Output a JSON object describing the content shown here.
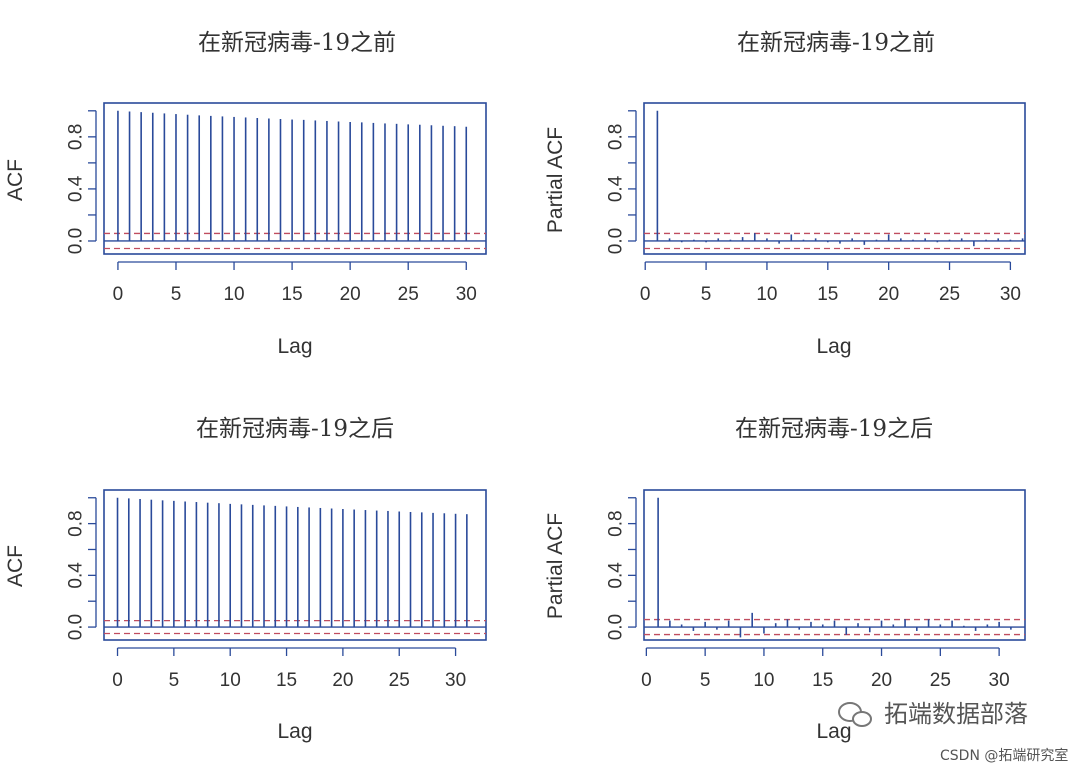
{
  "colors": {
    "frame": "#2a4a9a",
    "bar": "#2a4a9a",
    "ci": "#c04d5f",
    "text": "#333333"
  },
  "charts": {
    "acf_before": {
      "type": "bar",
      "title": "在新冠病毒-19之前",
      "xlabel": "Lag",
      "ylabel": "ACF",
      "xlim": [
        -1.2,
        31.7
      ],
      "ylim": [
        -0.1,
        1.06
      ],
      "xticks": [
        0,
        5,
        10,
        15,
        20,
        25,
        30
      ],
      "yticks": [
        0.0,
        0.4,
        0.8
      ],
      "yticks_minor": [
        0.2,
        0.6,
        1.0
      ],
      "ci": 0.058,
      "x": [
        0,
        1,
        2,
        3,
        4,
        5,
        6,
        7,
        8,
        9,
        10,
        11,
        12,
        13,
        14,
        15,
        16,
        17,
        18,
        19,
        20,
        21,
        22,
        23,
        24,
        25,
        26,
        27,
        28,
        29,
        30
      ],
      "values": [
        1.0,
        0.995,
        0.99,
        0.985,
        0.98,
        0.975,
        0.97,
        0.965,
        0.961,
        0.957,
        0.953,
        0.949,
        0.945,
        0.941,
        0.937,
        0.933,
        0.93,
        0.926,
        0.922,
        0.918,
        0.914,
        0.911,
        0.907,
        0.903,
        0.9,
        0.896,
        0.893,
        0.889,
        0.885,
        0.882,
        0.878
      ]
    },
    "pacf_before": {
      "type": "bar",
      "title": "在新冠病毒-19之前",
      "xlabel": "Lag",
      "ylabel": "Partial ACF",
      "xlim": [
        -0.1,
        31.2
      ],
      "ylim": [
        -0.1,
        1.06
      ],
      "xticks": [
        0,
        5,
        10,
        15,
        20,
        25,
        30
      ],
      "yticks": [
        0.0,
        0.4,
        0.8
      ],
      "yticks_minor": [
        0.2,
        0.6,
        1.0
      ],
      "ci": 0.058,
      "x": [
        1,
        2,
        3,
        4,
        5,
        6,
        7,
        8,
        9,
        10,
        11,
        12,
        13,
        14,
        15,
        16,
        17,
        18,
        19,
        20,
        21,
        22,
        23,
        24,
        25,
        26,
        27,
        28,
        29,
        30,
        31
      ],
      "values": [
        1.0,
        0.02,
        -0.01,
        0.01,
        -0.01,
        0.02,
        0.01,
        0.03,
        0.06,
        0.02,
        -0.02,
        0.05,
        0.01,
        0.02,
        -0.01,
        -0.02,
        0.02,
        -0.03,
        0.01,
        0.05,
        0.02,
        0.01,
        0.02,
        -0.01,
        0.01,
        0.02,
        -0.04,
        0.01,
        0.02,
        0.01,
        0.02
      ]
    },
    "acf_after": {
      "type": "bar",
      "title": "在新冠病毒-19之后",
      "xlabel": "Lag",
      "ylabel": "ACF",
      "xlim": [
        -1.2,
        32.7
      ],
      "ylim": [
        -0.1,
        1.06
      ],
      "xticks": [
        0,
        5,
        10,
        15,
        20,
        25,
        30
      ],
      "yticks": [
        0.0,
        0.4,
        0.8
      ],
      "yticks_minor": [
        0.2,
        0.6,
        1.0
      ],
      "ci": 0.05,
      "x": [
        0,
        1,
        2,
        3,
        4,
        5,
        6,
        7,
        8,
        9,
        10,
        11,
        12,
        13,
        14,
        15,
        16,
        17,
        18,
        19,
        20,
        21,
        22,
        23,
        24,
        25,
        26,
        27,
        28,
        29,
        30,
        31
      ],
      "values": [
        1.0,
        0.995,
        0.99,
        0.985,
        0.98,
        0.976,
        0.971,
        0.967,
        0.962,
        0.958,
        0.953,
        0.949,
        0.945,
        0.941,
        0.937,
        0.933,
        0.929,
        0.925,
        0.921,
        0.917,
        0.913,
        0.909,
        0.905,
        0.901,
        0.898,
        0.894,
        0.89,
        0.887,
        0.883,
        0.88,
        0.876,
        0.873
      ]
    },
    "pacf_after": {
      "type": "bar",
      "title": "在新冠病毒-19之后",
      "xlabel": "Lag",
      "ylabel": "Partial ACF",
      "xlim": [
        -0.2,
        32.2
      ],
      "ylim": [
        -0.1,
        1.06
      ],
      "xticks": [
        0,
        5,
        10,
        15,
        20,
        25,
        30
      ],
      "yticks": [
        0.0,
        0.4,
        0.8
      ],
      "yticks_minor": [
        0.2,
        0.6,
        1.0
      ],
      "ci": 0.058,
      "x": [
        1,
        2,
        3,
        4,
        5,
        6,
        7,
        8,
        9,
        10,
        11,
        12,
        13,
        14,
        15,
        16,
        17,
        18,
        19,
        20,
        21,
        22,
        23,
        24,
        25,
        26,
        27,
        28,
        29,
        30,
        31
      ],
      "values": [
        1.0,
        0.05,
        0.02,
        -0.03,
        0.04,
        -0.02,
        0.05,
        -0.08,
        0.11,
        -0.05,
        0.03,
        0.06,
        -0.02,
        0.04,
        0.02,
        0.05,
        -0.06,
        0.03,
        -0.04,
        0.05,
        0.02,
        0.06,
        -0.03,
        0.06,
        0.02,
        0.05,
        0.01,
        -0.03,
        0.02,
        0.04,
        -0.02
      ]
    }
  },
  "watermark": {
    "wechat": "拓端数据部落",
    "csdn": "CSDN @拓端研究室"
  }
}
